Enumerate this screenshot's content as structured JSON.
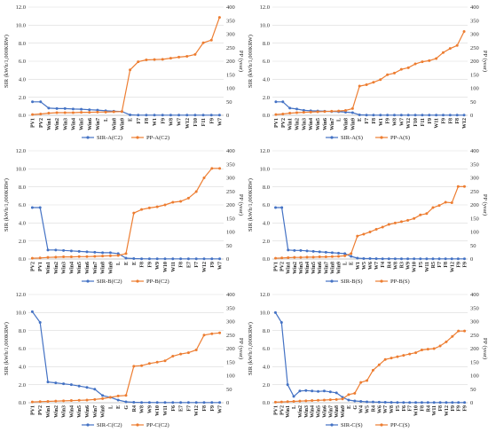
{
  "colors": {
    "sir": "#4472C4",
    "pp": "#ED7D31"
  },
  "chart_data": [
    {
      "type": "line",
      "ylabel": "SIR (kWh/1,000KRW)",
      "y2label": "PP (year)",
      "ylim": [
        0,
        12
      ],
      "y2lim": [
        0,
        400
      ],
      "yticks": [
        "0.0",
        "2.0",
        "4.0",
        "6.0",
        "8.0",
        "10.0",
        "12.0"
      ],
      "y2ticks": [
        "0",
        "50",
        "100",
        "150",
        "200",
        "250",
        "300",
        "350",
        "400"
      ],
      "categories": [
        "PV1",
        "PV2",
        "Win1",
        "Win2",
        "Win3",
        "Win4",
        "Win5",
        "Win6",
        "Win7",
        "L",
        "Win8",
        "Win9",
        "E",
        "F7",
        "F8",
        "W1",
        "F9",
        "W8",
        "W7",
        "W12",
        "F10",
        "F11",
        "F9",
        "W7"
      ],
      "series": [
        {
          "name": "SIR-A(C2)",
          "axis": "left",
          "values": [
            1.5,
            1.5,
            0.8,
            0.75,
            0.75,
            0.7,
            0.68,
            0.62,
            0.58,
            0.5,
            0.45,
            0.42,
            0.05,
            0.02,
            0.02,
            0.02,
            0.02,
            0.02,
            0.02,
            0.02,
            0.02,
            0.02,
            0.02,
            0.02
          ]
        },
        {
          "name": "PP-A(C2)",
          "axis": "right",
          "values": [
            3,
            5,
            8,
            10,
            10,
            10,
            11,
            11,
            12,
            12,
            13,
            14,
            168,
            198,
            205,
            206,
            207,
            211,
            215,
            218,
            225,
            268,
            278,
            362
          ]
        }
      ]
    },
    {
      "type": "line",
      "ylabel": "SIR (kWh/1,000KRW)",
      "y2label": "PP (year)",
      "ylim": [
        0,
        12
      ],
      "y2lim": [
        0,
        400
      ],
      "yticks": [
        "0.0",
        "2.0",
        "4.0",
        "6.0",
        "8.0",
        "10.0",
        "12.0"
      ],
      "y2ticks": [
        "0",
        "50",
        "100",
        "150",
        "200",
        "250",
        "300",
        "350",
        "400"
      ],
      "categories": [
        "PV1",
        "PV2",
        "Win1",
        "Win2",
        "Win3",
        "Win4",
        "Win5",
        "Win6",
        "Win7",
        "L",
        "Win8",
        "Win9",
        "E",
        "F7",
        "F8",
        "W1",
        "F9",
        "W8",
        "W7",
        "W12",
        "F10",
        "F11",
        "F9",
        "W11",
        "F9",
        "F8",
        "F8",
        "W12"
      ],
      "series": [
        {
          "name": "SIR-A(S)",
          "axis": "left",
          "values": [
            1.5,
            1.5,
            0.8,
            0.7,
            0.55,
            0.5,
            0.48,
            0.45,
            0.42,
            0.4,
            0.35,
            0.3,
            0.05,
            0.03,
            0.02,
            0.02,
            0.02,
            0.02,
            0.02,
            0.02,
            0.02,
            0.02,
            0.02,
            0.02,
            0.02,
            0.02,
            0.02,
            0.02
          ]
        },
        {
          "name": "PP-A(S)",
          "axis": "right",
          "values": [
            3,
            5,
            8,
            10,
            11,
            12,
            13,
            14,
            15,
            16,
            18,
            25,
            108,
            113,
            122,
            132,
            150,
            156,
            170,
            176,
            190,
            198,
            202,
            210,
            232,
            247,
            258,
            310
          ]
        }
      ]
    },
    {
      "type": "line",
      "ylabel": "SIR (kWh/1,000KRW)",
      "y2label": "PP (year)",
      "ylim": [
        0,
        12
      ],
      "y2lim": [
        0,
        400
      ],
      "yticks": [
        "0.0",
        "2.0",
        "4.0",
        "6.0",
        "8.0",
        "10.0",
        "12.0"
      ],
      "y2ticks": [
        "0",
        "50",
        "100",
        "150",
        "200",
        "250",
        "300",
        "350",
        "400"
      ],
      "categories": [
        "PV2",
        "PV1",
        "Win1",
        "Win2",
        "Win3",
        "Win4",
        "Win5",
        "Win6",
        "Win7",
        "Win8",
        "Win9",
        "L",
        "E",
        "E",
        "F8",
        "F9",
        "W9",
        "W10",
        "W11",
        "F8",
        "E7",
        "F7",
        "W12",
        "F9",
        "W7"
      ],
      "series": [
        {
          "name": "SIR-B(C2)",
          "axis": "left",
          "values": [
            5.7,
            5.7,
            1.0,
            1.0,
            0.95,
            0.9,
            0.85,
            0.8,
            0.75,
            0.7,
            0.7,
            0.6,
            0.1,
            0.05,
            0.03,
            0.02,
            0.02,
            0.02,
            0.02,
            0.02,
            0.02,
            0.02,
            0.02,
            0.02,
            0.02
          ]
        },
        {
          "name": "PP-B(C2)",
          "axis": "right",
          "values": [
            3,
            4,
            6,
            7,
            8,
            8,
            9,
            9,
            10,
            11,
            12,
            13,
            20,
            170,
            183,
            189,
            193,
            200,
            210,
            213,
            225,
            249,
            300,
            335,
            335
          ]
        }
      ]
    },
    {
      "type": "line",
      "ylabel": "SIR (kWh/1,000KRW)",
      "y2label": "PP (year)",
      "ylim": [
        0,
        12
      ],
      "y2lim": [
        0,
        400
      ],
      "yticks": [
        "0.0",
        "2.0",
        "4.0",
        "6.0",
        "8.0",
        "10.0",
        "12.0"
      ],
      "y2ticks": [
        "0",
        "50",
        "100",
        "150",
        "200",
        "250",
        "300",
        "350",
        "400"
      ],
      "categories": [
        "PV1",
        "PV2",
        "Win1",
        "Win2",
        "Win3",
        "Win4",
        "Win5",
        "Win6",
        "Win7",
        "Win8",
        "Win9",
        "L",
        "E",
        "W1",
        "W5",
        "W6",
        "W7",
        "F4",
        "R4",
        "W8",
        "R3",
        "W9",
        "W10",
        "F5",
        "W11",
        "R5",
        "F7",
        "F8",
        "W12",
        "F9",
        "F9"
      ],
      "series": [
        {
          "name": "SIR-B(S)",
          "axis": "left",
          "values": [
            5.7,
            5.7,
            1.0,
            0.95,
            0.95,
            0.9,
            0.85,
            0.8,
            0.75,
            0.7,
            0.65,
            0.6,
            0.3,
            0.1,
            0.05,
            0.05,
            0.04,
            0.03,
            0.03,
            0.03,
            0.02,
            0.02,
            0.02,
            0.02,
            0.02,
            0.02,
            0.02,
            0.02,
            0.02,
            0.02,
            0.02
          ]
        },
        {
          "name": "PP-B(S)",
          "axis": "right",
          "values": [
            3,
            4,
            5,
            6,
            6,
            7,
            7,
            8,
            8,
            9,
            10,
            12,
            20,
            85,
            92,
            100,
            110,
            118,
            128,
            133,
            138,
            143,
            150,
            163,
            168,
            190,
            198,
            210,
            208,
            268,
            268
          ]
        }
      ]
    },
    {
      "type": "line",
      "ylabel": "SIR (kWh/1,000KRW)",
      "y2label": "PP (year)",
      "ylim": [
        0,
        12
      ],
      "y2lim": [
        0,
        400
      ],
      "yticks": [
        "0.0",
        "2.0",
        "4.0",
        "6.0",
        "8.0",
        "10.0",
        "12.0"
      ],
      "y2ticks": [
        "0",
        "50",
        "100",
        "150",
        "200",
        "250",
        "300",
        "350",
        "400"
      ],
      "categories": [
        "PV1",
        "PV2",
        "Win1",
        "Win2",
        "Win3",
        "Win4",
        "Win5",
        "Win6",
        "Win7",
        "Win8",
        "L",
        "E",
        "G",
        "R4",
        "W8",
        "W9",
        "W10",
        "W11",
        "F6",
        "E7",
        "F7",
        "W12",
        "F8",
        "F9",
        "W7"
      ],
      "series": [
        {
          "name": "SIR-C(C2)",
          "axis": "left",
          "values": [
            10.1,
            8.9,
            2.3,
            2.2,
            2.1,
            2.0,
            1.85,
            1.7,
            1.5,
            0.8,
            0.6,
            0.3,
            0.1,
            0.05,
            0.03,
            0.03,
            0.02,
            0.02,
            0.02,
            0.02,
            0.02,
            0.02,
            0.02,
            0.02,
            0.02
          ]
        },
        {
          "name": "PP-C(C2)",
          "axis": "right",
          "values": [
            3,
            4,
            5,
            6,
            7,
            8,
            9,
            10,
            12,
            15,
            20,
            25,
            27,
            135,
            137,
            145,
            150,
            155,
            172,
            180,
            185,
            195,
            250,
            255,
            258
          ]
        }
      ]
    },
    {
      "type": "line",
      "ylabel": "SIR (kWh/1,000KRW)",
      "y2label": "PP (year)",
      "ylim": [
        0,
        12
      ],
      "y2lim": [
        0,
        400
      ],
      "yticks": [
        "0.0",
        "2.0",
        "4.0",
        "6.0",
        "8.0",
        "10.0",
        "12.0"
      ],
      "y2ticks": [
        "0",
        "50",
        "100",
        "150",
        "200",
        "250",
        "300",
        "350",
        "400"
      ],
      "categories": [
        "PV1",
        "PV2",
        "Win1",
        "L",
        "Win2",
        "Win3",
        "Win4",
        "Win5",
        "Win6",
        "Win7",
        "Win8",
        "Win9",
        "E",
        "G",
        "W4",
        "W5",
        "R4",
        "W6",
        "W7",
        "W8",
        "F5",
        "F6",
        "F7",
        "W10",
        "F8",
        "R4",
        "W11",
        "F8",
        "W12",
        "F9",
        "F9",
        "F9"
      ],
      "series": [
        {
          "name": "SIR-C(S)",
          "axis": "left",
          "values": [
            10.0,
            8.9,
            2.0,
            0.7,
            1.3,
            1.35,
            1.3,
            1.25,
            1.3,
            1.2,
            1.1,
            0.6,
            0.3,
            0.2,
            0.15,
            0.1,
            0.08,
            0.06,
            0.05,
            0.04,
            0.03,
            0.03,
            0.02,
            0.02,
            0.02,
            0.02,
            0.02,
            0.02,
            0.02,
            0.02,
            0.02,
            0.02
          ]
        },
        {
          "name": "PP-C(S)",
          "axis": "right",
          "values": [
            2,
            3,
            4,
            5,
            6,
            7,
            8,
            9,
            10,
            11,
            12,
            14,
            30,
            35,
            75,
            82,
            120,
            140,
            160,
            165,
            170,
            175,
            180,
            185,
            195,
            198,
            200,
            210,
            225,
            245,
            265,
            265
          ]
        }
      ]
    }
  ]
}
